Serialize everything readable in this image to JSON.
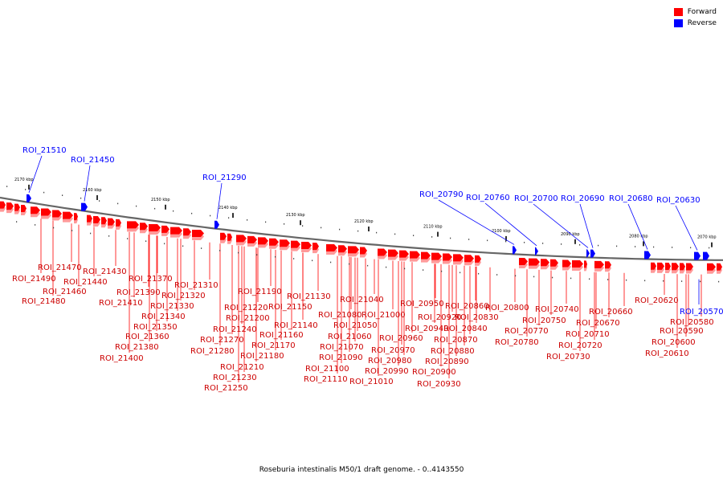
{
  "caption": "Roseburia intestinalis M50/1 draft genome. - 0..4143550",
  "legend": [
    {
      "label": "Forward",
      "color": "#ff0000"
    },
    {
      "label": "Reverse",
      "color": "#0000ff"
    }
  ],
  "colors": {
    "forward": "#ff0000",
    "forward_shadow": "#ff9999",
    "reverse": "#0000ff",
    "backbone": "#666666"
  },
  "kbp_ticks": [
    "2170 kbp",
    "2160 kbp",
    "2150 kbp",
    "2140 kbp",
    "2130 kbp",
    "2120 kbp",
    "2110 kbp",
    "2100 kbp",
    "2090 kbp",
    "2080 kbp",
    "2070 kbp"
  ],
  "reverse_labels": [
    "ROI_21510",
    "ROI_21450",
    "ROI_21290",
    "ROI_20790",
    "ROI_20760",
    "ROI_20700",
    "ROI_20690",
    "ROI_20680",
    "ROI_20630",
    "ROI_20570"
  ],
  "forward_labels": [
    "ROI_21490",
    "ROI_21480",
    "ROI_21470",
    "ROI_21460",
    "ROI_21440",
    "ROI_21430",
    "ROI_21410",
    "ROI_21400",
    "ROI_21390",
    "ROI_21380",
    "ROI_21370",
    "ROI_21360",
    "ROI_21350",
    "ROI_21340",
    "ROI_21330",
    "ROI_21320",
    "ROI_21310",
    "ROI_21280",
    "ROI_21270",
    "ROI_21250",
    "ROI_21240",
    "ROI_21230",
    "ROI_21220",
    "ROI_21210",
    "ROI_21200",
    "ROI_21190",
    "ROI_21180",
    "ROI_21170",
    "ROI_21160",
    "ROI_21150",
    "ROI_21140",
    "ROI_21130",
    "ROI_21110",
    "ROI_21100",
    "ROI_21090",
    "ROI_21080",
    "ROI_21070",
    "ROI_21060",
    "ROI_21050",
    "ROI_21040",
    "ROI_21010",
    "ROI_21000",
    "ROI_20990",
    "ROI_20980",
    "ROI_20970",
    "ROI_20960",
    "ROI_20950",
    "ROI_20940",
    "ROI_20930",
    "ROI_20920",
    "ROI_20900",
    "ROI_20890",
    "ROI_20880",
    "ROI_20870",
    "ROI_20860",
    "ROI_20840",
    "ROI_20830",
    "ROI_20800",
    "ROI_20780",
    "ROI_20770",
    "ROI_20750",
    "ROI_20740",
    "ROI_20730",
    "ROI_20720",
    "ROI_20710",
    "ROI_20670",
    "ROI_20660",
    "ROI_20620",
    "ROI_20610",
    "ROI_20600",
    "ROI_20590",
    "ROI_20580"
  ]
}
